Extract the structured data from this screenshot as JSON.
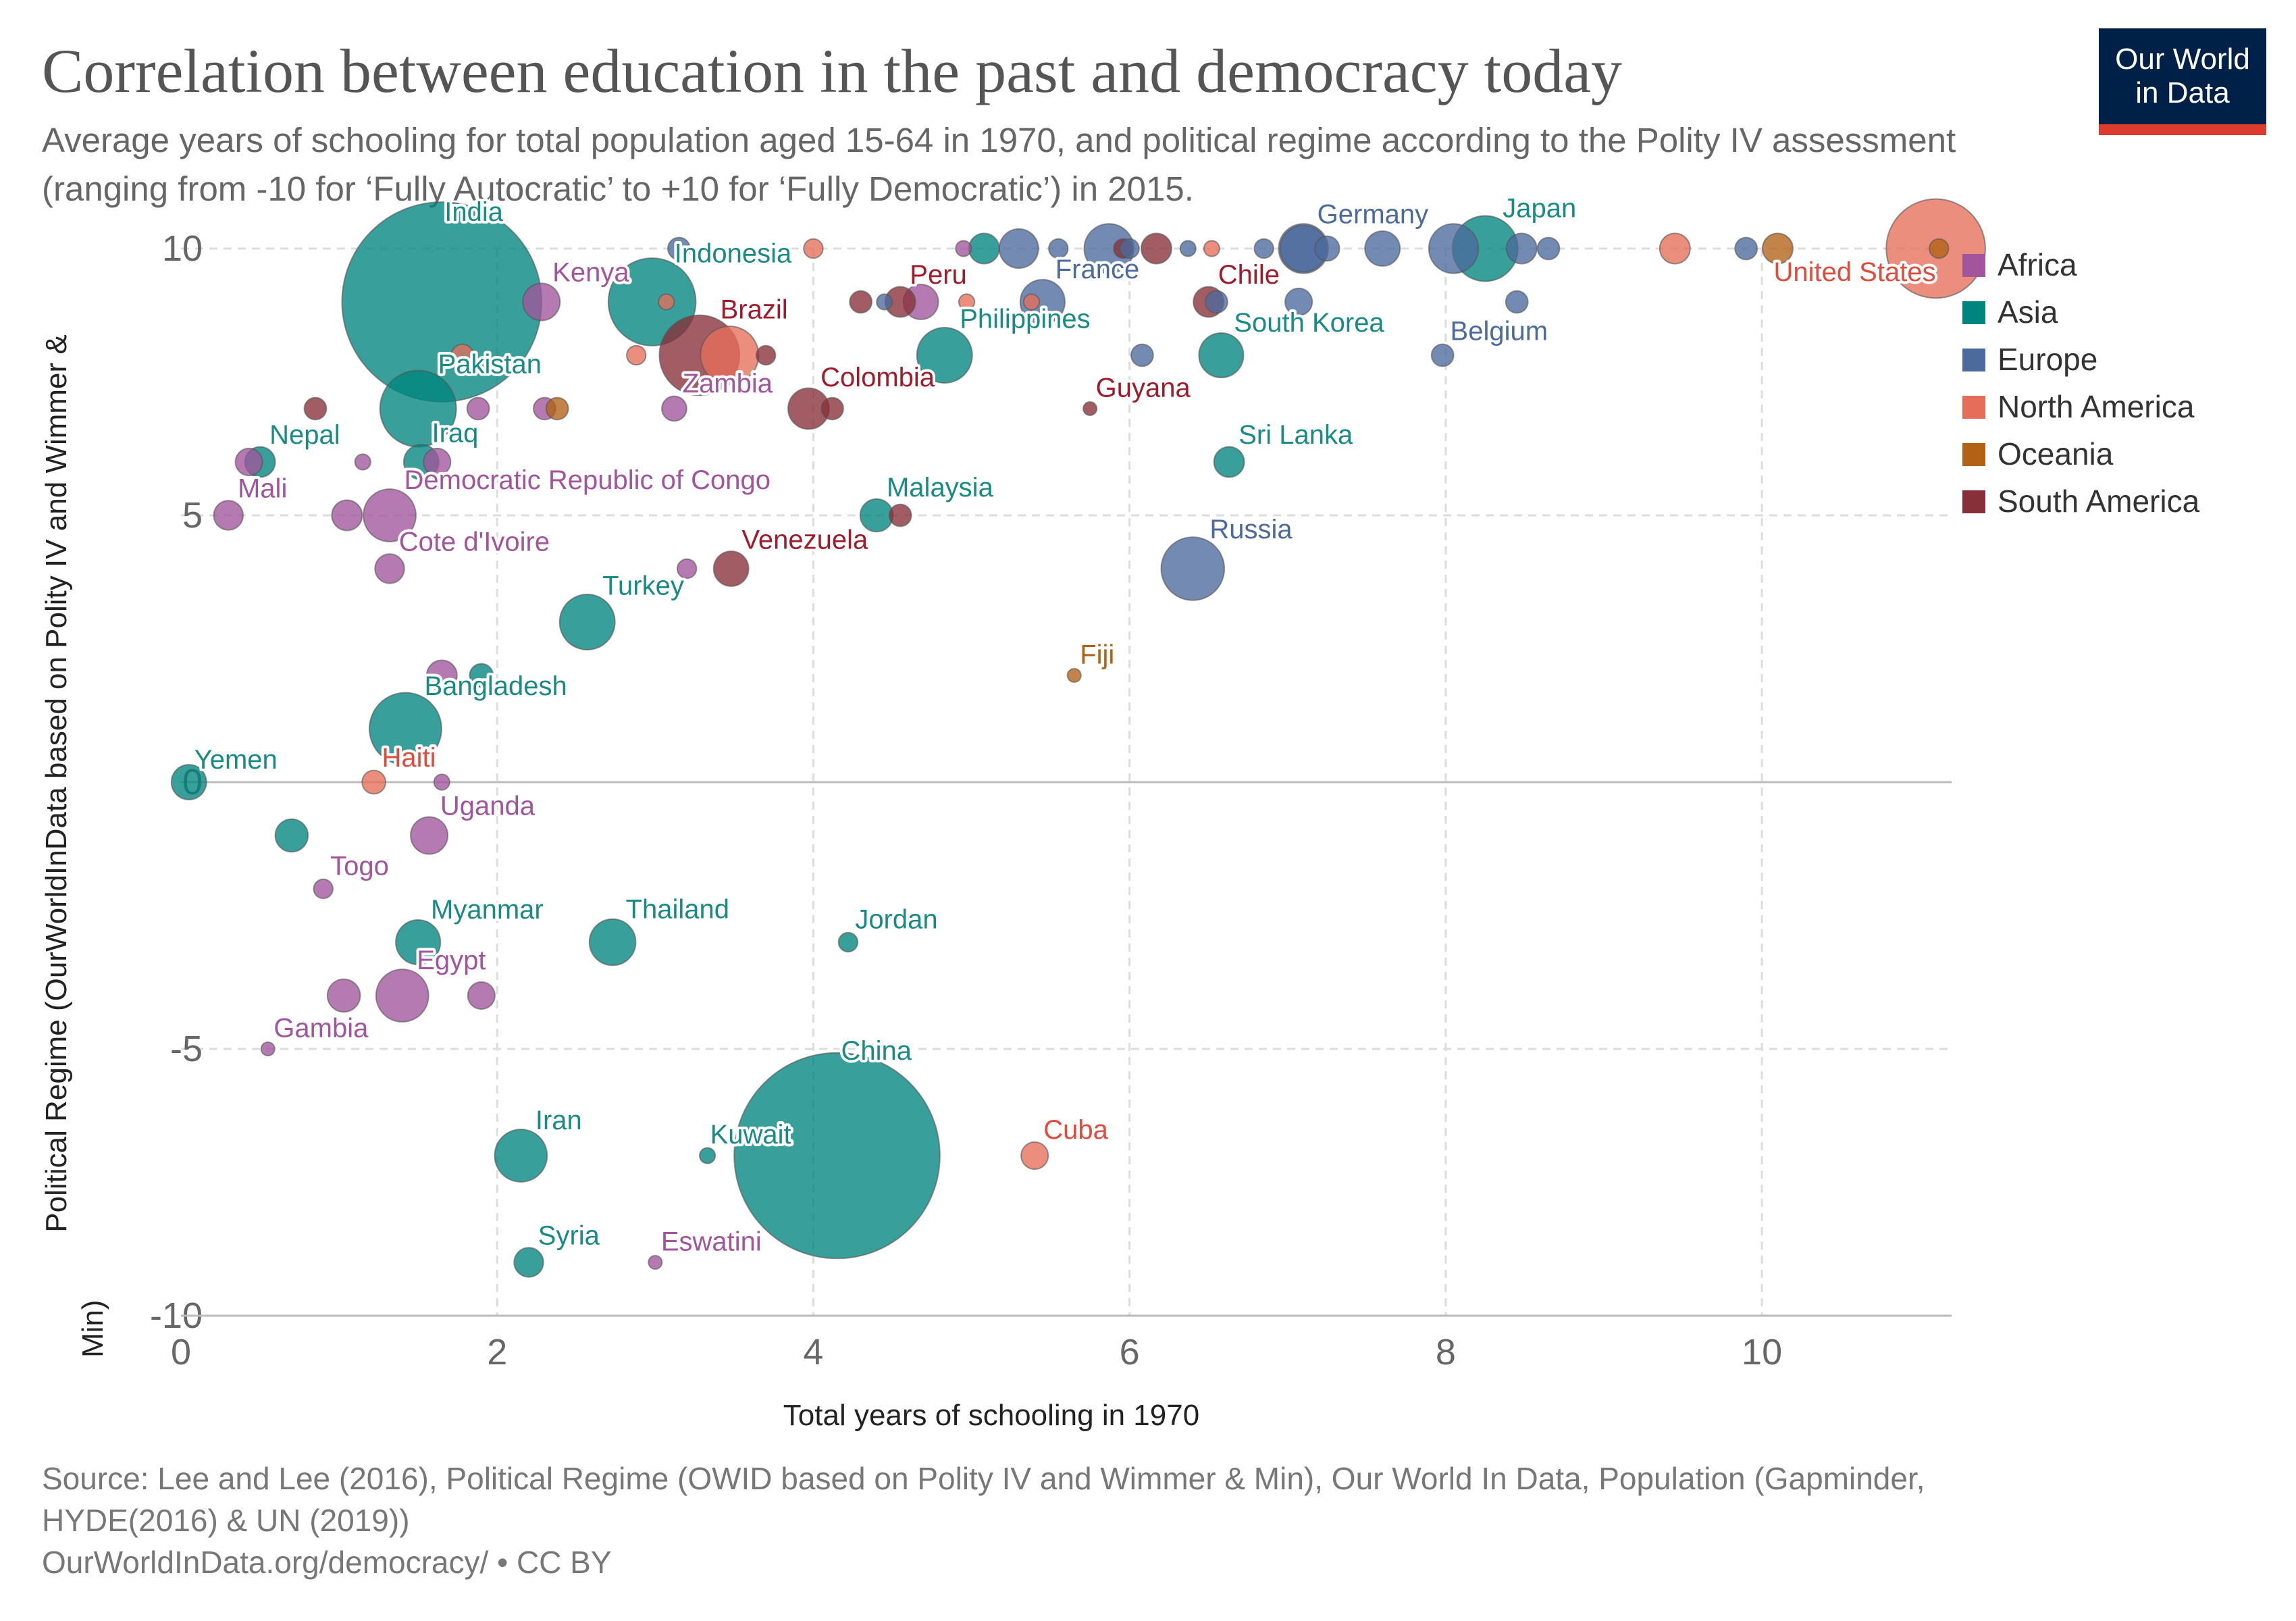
{
  "header": {
    "title": "Correlation between education in the past and democracy today",
    "subtitle": "Average years of schooling for total population aged 15-64 in 1970, and political regime according to the Polity IV assessment (ranging from -10 for ‘Fully Autocratic’ to +10 for ‘Fully Democratic’) in 2015."
  },
  "logo": {
    "line1": "Our World",
    "line2": "in Data"
  },
  "footer": {
    "source_line1": "Source: Lee and Lee (2016), Political Regime (OWID based on Polity IV and Wimmer & Min), Our World In Data, Population (Gapminder,",
    "source_line2": "HYDE(2016) & UN (2019))",
    "source_line3": "OurWorldInData.org/democracy/ • CC BY"
  },
  "colors": {
    "Africa": "#a2559c",
    "Asia": "#00847e",
    "Europe": "#4c6a9c",
    "North America": "#e56e5a",
    "Oceania": "#b16214",
    "South America": "#883039"
  },
  "label_colors": {
    "Africa": "#a2559c",
    "Asia": "#1a8a84",
    "Europe": "#4c6a9c",
    "North America": "#e04b3c",
    "Oceania": "#b16214",
    "South America": "#a11b2a"
  },
  "chart_data": {
    "type": "scatter",
    "title": "Correlation between education in the past and democracy today",
    "xlabel": "Total years of schooling in 1970",
    "ylabel": "Political Regime (OurWorldInData based on Polity IV and Wimmer & Min)",
    "xlim": [
      0,
      11.2
    ],
    "ylim": [
      -10,
      10
    ],
    "xticks": [
      "0",
      "2",
      "4",
      "6",
      "8",
      "10"
    ],
    "yticks": [
      "-10",
      "-5",
      "0",
      "5",
      "10"
    ],
    "grid": true,
    "legend_position": "right",
    "legend": [
      "Africa",
      "Asia",
      "Europe",
      "North America",
      "Oceania",
      "South America"
    ],
    "points": [
      {
        "label": "India",
        "x": 1.65,
        "y": 9,
        "region": "Asia",
        "size": 1300,
        "big": true
      },
      {
        "label": "China",
        "x": 4.15,
        "y": -7,
        "region": "Asia",
        "size": 1380,
        "big": true
      },
      {
        "label": "United States",
        "x": 11.1,
        "y": 10,
        "region": "North America",
        "size": 320
      },
      {
        "label": "Indonesia",
        "x": 2.98,
        "y": 9,
        "region": "Asia",
        "size": 250
      },
      {
        "label": "Brazil",
        "x": 3.28,
        "y": 8,
        "region": "South America",
        "size": 210
      },
      {
        "label": "Pakistan",
        "x": 1.5,
        "y": 7,
        "region": "Asia",
        "size": 190
      },
      {
        "label": "Japan",
        "x": 8.25,
        "y": 10,
        "region": "Asia",
        "size": 140
      },
      {
        "label": "Bangladesh",
        "x": 1.42,
        "y": 1,
        "region": "Asia",
        "size": 170
      },
      {
        "label": "Russia",
        "x": 6.4,
        "y": 4,
        "region": "Europe",
        "size": 130
      },
      {
        "label": "Kenya",
        "x": 2.28,
        "y": 9,
        "region": "Africa",
        "size": 45
      },
      {
        "label": "Peru",
        "x": 4.55,
        "y": 9,
        "region": "South America",
        "size": 30
      },
      {
        "label": "France",
        "x": 5.45,
        "y": 9,
        "region": "Europe",
        "size": 65
      },
      {
        "label": "Chile",
        "x": 6.5,
        "y": 9,
        "region": "South America",
        "size": 30
      },
      {
        "label": "Germany",
        "x": 7.1,
        "y": 10,
        "region": "Europe",
        "size": 80
      },
      {
        "label": "Philippines",
        "x": 4.83,
        "y": 8,
        "region": "Asia",
        "size": 100
      },
      {
        "label": "South Korea",
        "x": 6.58,
        "y": 8,
        "region": "Asia",
        "size": 65
      },
      {
        "label": "Belgium",
        "x": 7.98,
        "y": 8,
        "region": "Europe",
        "size": 16
      },
      {
        "label": "Zambia",
        "x": 3.12,
        "y": 7,
        "region": "Africa",
        "size": 20
      },
      {
        "label": "Colombia",
        "x": 3.97,
        "y": 7,
        "region": "South America",
        "size": 55
      },
      {
        "label": "Guyana",
        "x": 5.75,
        "y": 7,
        "region": "South America",
        "size": 6
      },
      {
        "label": "Nepal",
        "x": 0.5,
        "y": 6,
        "region": "Asia",
        "size": 30
      },
      {
        "label": "Iraq",
        "x": 1.52,
        "y": 6,
        "region": "Asia",
        "size": 40
      },
      {
        "label": "Sri Lanka",
        "x": 6.63,
        "y": 6,
        "region": "Asia",
        "size": 30
      },
      {
        "label": "Mali",
        "x": 0.3,
        "y": 5,
        "region": "Africa",
        "size": 28
      },
      {
        "label": "Democratic Republic of Congo",
        "x": 1.32,
        "y": 5,
        "region": "Africa",
        "size": 90
      },
      {
        "label": "Malaysia",
        "x": 4.4,
        "y": 5,
        "region": "Asia",
        "size": 35
      },
      {
        "label": "Cote d'Ivoire",
        "x": 1.32,
        "y": 4,
        "region": "Africa",
        "size": 28
      },
      {
        "label": "Venezuela",
        "x": 3.48,
        "y": 4,
        "region": "South America",
        "size": 40
      },
      {
        "label": "Turkey",
        "x": 2.57,
        "y": 3,
        "region": "Asia",
        "size": 100
      },
      {
        "label": "Fiji",
        "x": 5.65,
        "y": 2,
        "region": "Oceania",
        "size": 6
      },
      {
        "label": "Yemen",
        "x": 0.05,
        "y": 0,
        "region": "Asia",
        "size": 40
      },
      {
        "label": "Haiti",
        "x": 1.22,
        "y": 0,
        "region": "North America",
        "size": 18
      },
      {
        "label": "Uganda",
        "x": 1.57,
        "y": -1,
        "region": "Africa",
        "size": 45
      },
      {
        "label": "Togo",
        "x": 0.9,
        "y": -2,
        "region": "Africa",
        "size": 12
      },
      {
        "label": "Myanmar",
        "x": 1.5,
        "y": -3,
        "region": "Asia",
        "size": 65
      },
      {
        "label": "Thailand",
        "x": 2.73,
        "y": -3,
        "region": "Asia",
        "size": 70
      },
      {
        "label": "Jordan",
        "x": 4.22,
        "y": -3,
        "region": "Asia",
        "size": 12
      },
      {
        "label": "Egypt",
        "x": 1.4,
        "y": -4,
        "region": "Africa",
        "size": 90
      },
      {
        "label": "Gambia",
        "x": 0.55,
        "y": -5,
        "region": "Africa",
        "size": 6
      },
      {
        "label": "Iran",
        "x": 2.15,
        "y": -7,
        "region": "Asia",
        "size": 90
      },
      {
        "label": "Kuwait",
        "x": 3.33,
        "y": -7,
        "region": "Asia",
        "size": 8
      },
      {
        "label": "Cuba",
        "x": 5.4,
        "y": -7,
        "region": "North America",
        "size": 24
      },
      {
        "label": "Syria",
        "x": 2.2,
        "y": -9,
        "region": "Asia",
        "size": 28
      },
      {
        "label": "Eswatini",
        "x": 3.0,
        "y": -9,
        "region": "Africa",
        "size": 6
      },
      {
        "x": 3.15,
        "y": 10,
        "region": "Europe",
        "size": 16
      },
      {
        "x": 4.0,
        "y": 10,
        "region": "North America",
        "size": 12
      },
      {
        "x": 4.95,
        "y": 10,
        "region": "Africa",
        "size": 8
      },
      {
        "x": 5.08,
        "y": 10,
        "region": "Asia",
        "size": 30
      },
      {
        "x": 5.3,
        "y": 10,
        "region": "Europe",
        "size": 50
      },
      {
        "x": 5.55,
        "y": 10,
        "region": "Europe",
        "size": 12
      },
      {
        "x": 5.87,
        "y": 10,
        "region": "Europe",
        "size": 80
      },
      {
        "x": 5.96,
        "y": 10,
        "region": "South America",
        "size": 12
      },
      {
        "x": 6.0,
        "y": 10,
        "region": "Europe",
        "size": 12
      },
      {
        "x": 6.17,
        "y": 10,
        "region": "South America",
        "size": 30
      },
      {
        "x": 6.37,
        "y": 10,
        "region": "Europe",
        "size": 8
      },
      {
        "x": 6.52,
        "y": 10,
        "region": "North America",
        "size": 8
      },
      {
        "x": 6.85,
        "y": 10,
        "region": "Europe",
        "size": 12
      },
      {
        "x": 7.1,
        "y": 10,
        "region": "Europe",
        "size": 70
      },
      {
        "x": 7.25,
        "y": 10,
        "region": "Europe",
        "size": 20
      },
      {
        "x": 7.6,
        "y": 10,
        "region": "Europe",
        "size": 40
      },
      {
        "x": 8.05,
        "y": 10,
        "region": "Europe",
        "size": 80
      },
      {
        "x": 8.48,
        "y": 10,
        "region": "Europe",
        "size": 30
      },
      {
        "x": 8.65,
        "y": 10,
        "region": "Europe",
        "size": 16
      },
      {
        "x": 9.45,
        "y": 10,
        "region": "North America",
        "size": 30
      },
      {
        "x": 9.9,
        "y": 10,
        "region": "Europe",
        "size": 16
      },
      {
        "x": 10.1,
        "y": 10,
        "region": "Oceania",
        "size": 30
      },
      {
        "x": 11.12,
        "y": 10,
        "region": "Oceania",
        "size": 12
      },
      {
        "x": 3.07,
        "y": 9,
        "region": "North America",
        "size": 8
      },
      {
        "x": 4.3,
        "y": 9,
        "region": "South America",
        "size": 16
      },
      {
        "x": 4.45,
        "y": 9,
        "region": "Europe",
        "size": 8
      },
      {
        "x": 4.68,
        "y": 9,
        "region": "Africa",
        "size": 40
      },
      {
        "x": 4.97,
        "y": 9,
        "region": "North America",
        "size": 8
      },
      {
        "x": 5.38,
        "y": 9,
        "region": "North America",
        "size": 8
      },
      {
        "x": 6.55,
        "y": 9,
        "region": "Europe",
        "size": 16
      },
      {
        "x": 7.07,
        "y": 9,
        "region": "Europe",
        "size": 24
      },
      {
        "x": 8.45,
        "y": 9,
        "region": "Europe",
        "size": 16
      },
      {
        "x": 1.78,
        "y": 8,
        "region": "North America",
        "size": 16
      },
      {
        "x": 2.88,
        "y": 8,
        "region": "North America",
        "size": 12
      },
      {
        "x": 3.47,
        "y": 8,
        "region": "North America",
        "size": 110
      },
      {
        "x": 3.7,
        "y": 8,
        "region": "South America",
        "size": 12
      },
      {
        "x": 6.08,
        "y": 8,
        "region": "Europe",
        "size": 16
      },
      {
        "x": 0.85,
        "y": 7,
        "region": "South America",
        "size": 16
      },
      {
        "x": 1.88,
        "y": 7,
        "region": "Africa",
        "size": 16
      },
      {
        "x": 2.3,
        "y": 7,
        "region": "Africa",
        "size": 16
      },
      {
        "x": 2.38,
        "y": 7,
        "region": "Oceania",
        "size": 16
      },
      {
        "x": 4.12,
        "y": 7,
        "region": "South America",
        "size": 16
      },
      {
        "x": 0.43,
        "y": 6,
        "region": "Africa",
        "size": 24
      },
      {
        "x": 1.15,
        "y": 6,
        "region": "Africa",
        "size": 8
      },
      {
        "x": 1.62,
        "y": 6,
        "region": "Africa",
        "size": 24
      },
      {
        "x": 1.05,
        "y": 5,
        "region": "Africa",
        "size": 30
      },
      {
        "x": 4.55,
        "y": 5,
        "region": "South America",
        "size": 16
      },
      {
        "x": 3.2,
        "y": 4,
        "region": "Africa",
        "size": 12
      },
      {
        "x": 1.65,
        "y": 2,
        "region": "Africa",
        "size": 30
      },
      {
        "x": 1.9,
        "y": 2,
        "region": "Asia",
        "size": 18
      },
      {
        "x": 1.65,
        "y": 0,
        "region": "Africa",
        "size": 8
      },
      {
        "x": 0.7,
        "y": -1,
        "region": "Asia",
        "size": 35
      },
      {
        "x": 1.03,
        "y": -4,
        "region": "Africa",
        "size": 35
      },
      {
        "x": 1.9,
        "y": -4,
        "region": "Africa",
        "size": 24
      }
    ]
  }
}
